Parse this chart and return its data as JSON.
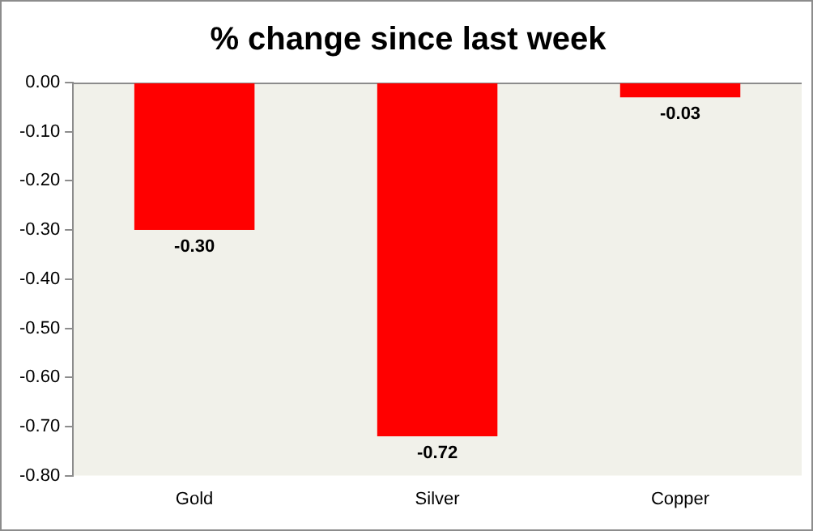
{
  "chart_data": {
    "type": "bar",
    "title": "% change since last week",
    "categories": [
      "Gold",
      "Silver",
      "Copper"
    ],
    "values": [
      -0.3,
      -0.72,
      -0.03
    ],
    "color": "#ff0000",
    "value_labels": [
      "-0.30",
      "-0.72",
      "-0.03"
    ],
    "ylim": [
      -0.8,
      0
    ],
    "yticks": [
      {
        "value": -0.8,
        "label": "-0.80"
      },
      {
        "value": -0.7,
        "label": "-0.70"
      },
      {
        "value": -0.6,
        "label": "-0.60"
      },
      {
        "value": -0.5,
        "label": "-0.50"
      },
      {
        "value": -0.4,
        "label": "-0.40"
      },
      {
        "value": -0.3,
        "label": "-0.30"
      },
      {
        "value": -0.2,
        "label": "-0.20"
      },
      {
        "value": -0.1,
        "label": "-0.10"
      },
      {
        "value": 0,
        "label": "0.00"
      }
    ],
    "grid": false,
    "legend": false
  }
}
